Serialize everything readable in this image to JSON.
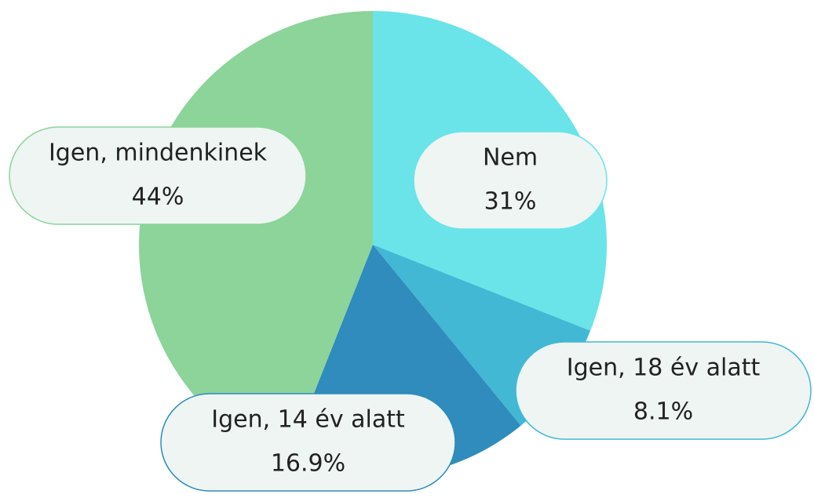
{
  "chart_data": {
    "type": "pie",
    "categories": [
      "Nem",
      "Igen, 18 év alatt",
      "Igen, 14 év alatt",
      "Igen, mindenkinek"
    ],
    "values": [
      31,
      8.1,
      16.9,
      44
    ],
    "value_labels": [
      "31%",
      "8.1%",
      "16.9%",
      "44%"
    ],
    "colors": [
      "#6ae4e8",
      "#42b8d4",
      "#2f8cbc",
      "#8cd49a"
    ]
  }
}
